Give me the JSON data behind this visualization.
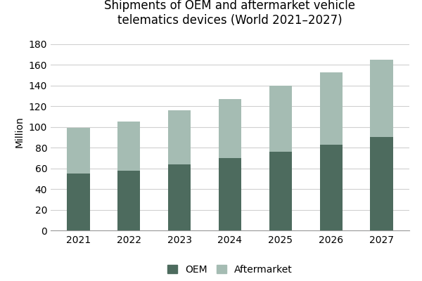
{
  "years": [
    "2021",
    "2022",
    "2023",
    "2024",
    "2025",
    "2026",
    "2027"
  ],
  "oem_values": [
    55,
    58,
    64,
    70,
    76,
    83,
    90
  ],
  "total_values": [
    99,
    105,
    116,
    127,
    140,
    153,
    165
  ],
  "oem_color": "#4d6b5e",
  "aftermarket_color": "#a5bcb3",
  "title_line1": "Shipments of OEM and aftermarket vehicle",
  "title_line2": "telematics devices (World 2021–2027)",
  "ylabel": "Million",
  "ylim": [
    0,
    190
  ],
  "yticks": [
    0,
    20,
    40,
    60,
    80,
    100,
    120,
    140,
    160,
    180
  ],
  "legend_oem": "OEM",
  "legend_aftermarket": "Aftermarket",
  "background_color": "#ffffff",
  "title_fontsize": 12,
  "axis_fontsize": 10,
  "tick_fontsize": 10,
  "legend_fontsize": 10,
  "bar_width": 0.45
}
